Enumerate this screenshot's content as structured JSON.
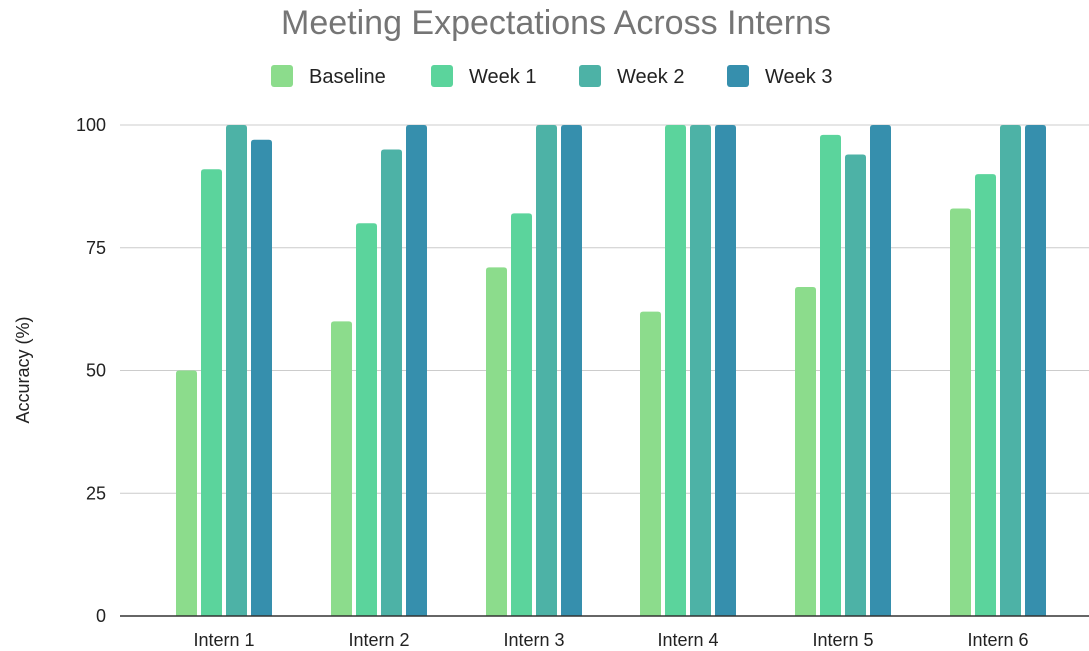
{
  "chart_data": {
    "type": "bar",
    "title": "Meeting Expectations Across Interns",
    "xlabel": "",
    "ylabel": "Accuracy (%)",
    "ylim": [
      0,
      100
    ],
    "yticks": [
      "0",
      "25",
      "50",
      "75",
      "100"
    ],
    "ytick_values": [
      0,
      25,
      50,
      75,
      100
    ],
    "grid": true,
    "legend_position": "top-center",
    "categories": [
      "Intern 1",
      "Intern 2",
      "Intern 3",
      "Intern 4",
      "Intern 5",
      "Intern 6"
    ],
    "series": [
      {
        "name": "Baseline",
        "color": "#8cdc8c",
        "values": [
          50,
          60,
          71,
          62,
          67,
          83
        ]
      },
      {
        "name": "Week 1",
        "color": "#5bd49c",
        "values": [
          91,
          80,
          82,
          100,
          98,
          90
        ]
      },
      {
        "name": "Week 2",
        "color": "#4db2a6",
        "values": [
          100,
          95,
          100,
          100,
          94,
          100
        ]
      },
      {
        "name": "Week 3",
        "color": "#368fad",
        "values": [
          97,
          100,
          100,
          100,
          100,
          100
        ]
      }
    ],
    "gridline_color": "#cccccc",
    "axis_color": "#333333"
  }
}
